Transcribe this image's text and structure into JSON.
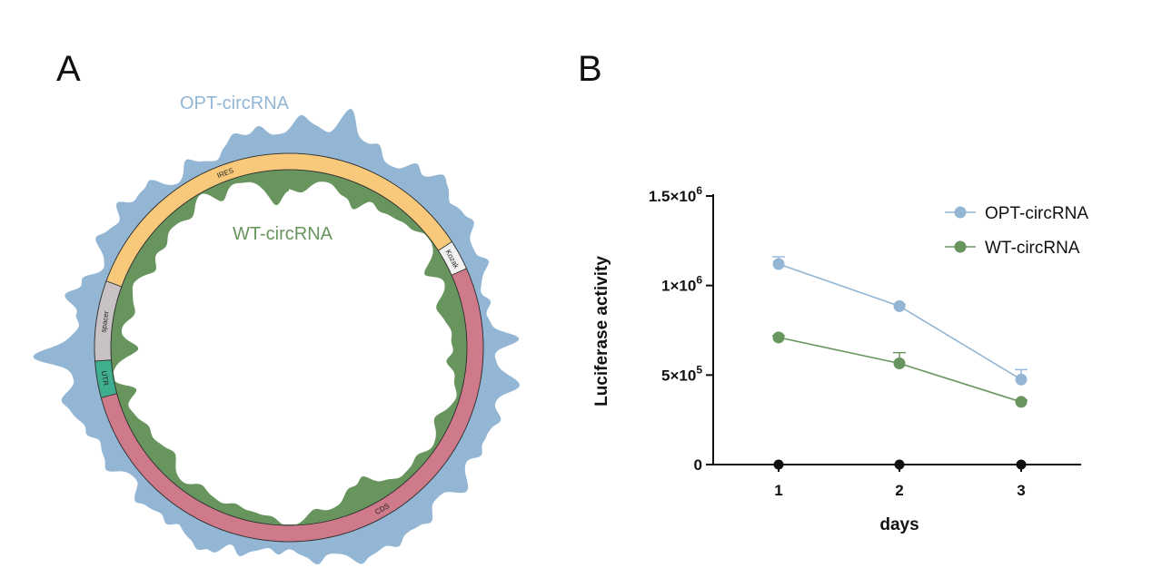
{
  "panels": {
    "a": "A",
    "b": "B"
  },
  "colors": {
    "opt": "#93b6d5",
    "wt": "#68955e",
    "baseline": "#111111"
  },
  "circular": {
    "outer_label": "OPT-circRNA",
    "inner_label": "WT-circRNA",
    "segments": [
      {
        "label": "IRES",
        "color": "#f8c97a"
      },
      {
        "label": "Kozak",
        "color": "#f2f2f2"
      },
      {
        "label": "CDS",
        "color": "#cf7a8a"
      },
      {
        "label": "UTR",
        "color": "#3fae8e"
      },
      {
        "label": "spacer",
        "color": "#c9c2c4"
      }
    ]
  },
  "chart_data": {
    "type": "line",
    "xlabel": "days",
    "ylabel": "Luciferase activity",
    "categories": [
      "1",
      "2",
      "3"
    ],
    "x": [
      1,
      2,
      3
    ],
    "ylim": [
      0,
      1500000
    ],
    "yticks": [
      {
        "value": 0,
        "base": "0",
        "exp": ""
      },
      {
        "value": 500000,
        "base": "5×10",
        "exp": "5"
      },
      {
        "value": 1000000,
        "base": "1×10",
        "exp": "6"
      },
      {
        "value": 1500000,
        "base": "1.5×10",
        "exp": "6"
      }
    ],
    "series": [
      {
        "name": "OPT-circRNA",
        "color": "#93b6d5",
        "values": [
          1120000,
          885000,
          475000
        ],
        "errors": [
          40000,
          10000,
          55000
        ]
      },
      {
        "name": "WT-circRNA",
        "color": "#68955e",
        "values": [
          710000,
          565000,
          350000
        ],
        "errors": [
          10000,
          60000,
          10000
        ]
      },
      {
        "name": "",
        "color": "#111111",
        "values": [
          0,
          0,
          0
        ],
        "errors": [
          0,
          0,
          0
        ]
      }
    ],
    "legend": "top-right",
    "grid": false
  }
}
